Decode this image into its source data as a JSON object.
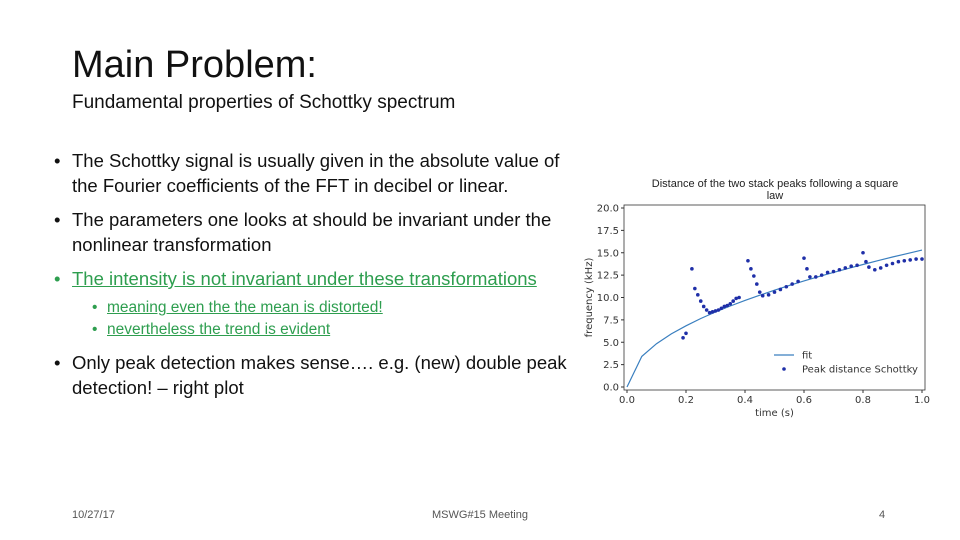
{
  "slide": {
    "title": "Main Problem:",
    "subtitle": "Fundamental properties of Schottky spectrum",
    "bullets": [
      {
        "text": "The Schottky signal is usually given in the absolute value of the Fourier coefficients of the FFT in decibel or linear."
      },
      {
        "text": "The parameters one looks at should be invariant under the nonlinear transformation"
      },
      {
        "text": "The intensity is not invariant under these transformations",
        "color": "#2e9e4f",
        "sub": [
          "meaning even the the mean is distorted!",
          "nevertheless the trend is evident"
        ]
      },
      {
        "text": "Only peak detection makes sense…. e.g. (new) double peak detection! – right plot"
      }
    ],
    "footer": {
      "date": "10/27/17",
      "event": "MSWG#15 Meeting",
      "page": "4"
    }
  },
  "chart_data": {
    "type": "scatter",
    "title": "Distance of the two stack peaks following a square law",
    "xlabel": "time (s)",
    "ylabel": "frequency (kHz)",
    "xlim": [
      0,
      1
    ],
    "ylim": [
      0,
      20
    ],
    "xticks": [
      {
        "value": 0,
        "label": "0.0"
      },
      {
        "value": 0.2,
        "label": "0.2"
      },
      {
        "value": 0.4,
        "label": "0.4"
      },
      {
        "value": 0.6,
        "label": "0.6"
      },
      {
        "value": 0.8,
        "label": "0.8"
      },
      {
        "value": 1,
        "label": "1.0"
      }
    ],
    "yticks": [
      {
        "value": 0,
        "label": "0.0"
      },
      2.5,
      {
        "value": 5,
        "label": "5.0"
      },
      7.5,
      {
        "value": 10,
        "label": "10.0"
      },
      12.5,
      {
        "value": 15,
        "label": "15.0"
      },
      17.5,
      {
        "value": 20,
        "label": "20.0"
      }
    ],
    "legend": "lower right",
    "series": [
      {
        "name": "fit",
        "color": "#3a7fbf",
        "mode": "line",
        "x": [
          0,
          0.05,
          0.1,
          0.15,
          0.2,
          0.25,
          0.3,
          0.35,
          0.4,
          0.45,
          0.5,
          0.55,
          0.6,
          0.65,
          0.7,
          0.75,
          0.8,
          0.85,
          0.9,
          0.95,
          1
        ],
        "values": [
          0,
          3.42,
          4.84,
          5.93,
          6.84,
          7.65,
          8.38,
          9.05,
          9.68,
          10.26,
          10.82,
          11.35,
          11.85,
          12.34,
          12.8,
          13.25,
          13.69,
          14.11,
          14.52,
          14.91,
          15.3
        ]
      },
      {
        "name": "Peak distance Schottky",
        "color": "#1f2fa8",
        "mode": "markers",
        "x": [
          0.19,
          0.2,
          0.22,
          0.23,
          0.24,
          0.25,
          0.26,
          0.27,
          0.28,
          0.29,
          0.3,
          0.31,
          0.32,
          0.33,
          0.34,
          0.35,
          0.36,
          0.37,
          0.38,
          0.41,
          0.42,
          0.43,
          0.44,
          0.45,
          0.46,
          0.48,
          0.5,
          0.52,
          0.54,
          0.56,
          0.58,
          0.6,
          0.61,
          0.62,
          0.64,
          0.66,
          0.68,
          0.7,
          0.72,
          0.74,
          0.76,
          0.78,
          0.8,
          0.81,
          0.82,
          0.84,
          0.86,
          0.88,
          0.9,
          0.92,
          0.94,
          0.96,
          0.98,
          1
        ],
        "values": [
          5.5,
          6.0,
          13.2,
          11.0,
          10.3,
          9.6,
          9.0,
          8.6,
          8.3,
          8.4,
          8.5,
          8.6,
          8.8,
          9.0,
          9.1,
          9.3,
          9.6,
          9.9,
          10.0,
          14.1,
          13.2,
          12.4,
          11.5,
          10.6,
          10.2,
          10.3,
          10.6,
          10.9,
          11.2,
          11.5,
          11.8,
          14.4,
          13.2,
          12.3,
          12.3,
          12.5,
          12.8,
          12.9,
          13.1,
          13.3,
          13.5,
          13.6,
          15.0,
          14.0,
          13.4,
          13.1,
          13.3,
          13.6,
          13.8,
          14.0,
          14.1,
          14.2,
          14.3,
          14.3
        ]
      }
    ]
  }
}
